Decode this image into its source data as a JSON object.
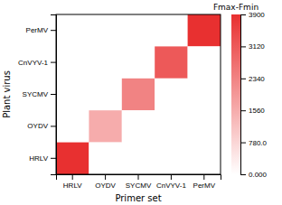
{
  "chart_data": {
    "type": "heatmap",
    "x": [
      "HRLV",
      "OYDV",
      "SYCMV",
      "CnVYV-1",
      "PerMV"
    ],
    "y": [
      "PerMV",
      "CnVYV-1",
      "SYCMV",
      "OYDV",
      "HRLV"
    ],
    "values": [
      [
        0,
        0,
        0,
        0,
        3900
      ],
      [
        0,
        0,
        0,
        3120,
        0
      ],
      [
        0,
        0,
        2340,
        0,
        0
      ],
      [
        0,
        1560,
        0,
        0,
        0
      ],
      [
        3900,
        0,
        0,
        0,
        0
      ]
    ],
    "x_label": "Primer set",
    "y_label": "Plant virus",
    "colorbar": {
      "title": "Fmax-Fmin",
      "range": [
        0,
        3900
      ],
      "ticks": [
        {
          "value": 0,
          "label": "0.000"
        },
        {
          "value": 780.0,
          "label": "780.0"
        },
        1560,
        2340,
        3120,
        3900
      ],
      "colors": [
        "#ffffff",
        "#e83030"
      ]
    }
  }
}
